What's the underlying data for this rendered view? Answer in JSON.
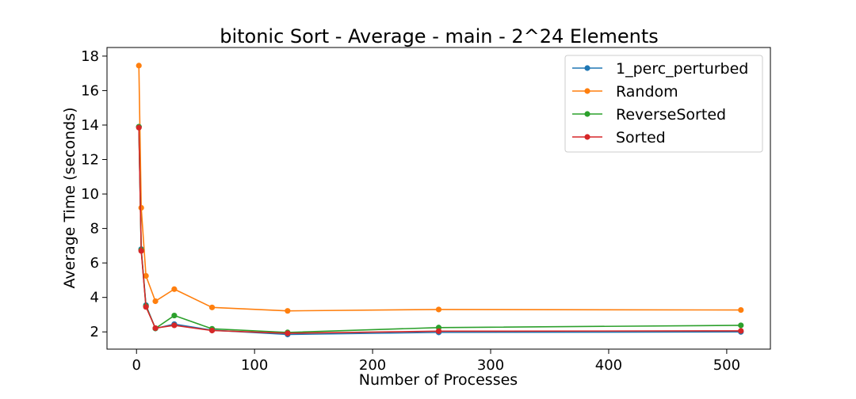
{
  "chart_data": {
    "type": "line",
    "title": "bitonic Sort - Average - main - 2^24 Elements",
    "xlabel": "Number of Processes",
    "ylabel": "Average Time (seconds)",
    "xlim": [
      -25,
      537
    ],
    "ylim": [
      1.0,
      18.5
    ],
    "xticks": [
      0,
      100,
      200,
      300,
      400,
      500
    ],
    "yticks": [
      2,
      4,
      6,
      8,
      10,
      12,
      14,
      16,
      18
    ],
    "grid": false,
    "legend_position": "top-right",
    "x": [
      2,
      4,
      8,
      16,
      32,
      64,
      128,
      256,
      512
    ],
    "series": [
      {
        "name": "1_perc_perturbed",
        "color": "#1f77b4",
        "values": [
          13.9,
          6.8,
          3.55,
          2.2,
          2.45,
          2.1,
          1.85,
          1.97,
          2.0
        ]
      },
      {
        "name": "Random",
        "color": "#ff7f0e",
        "values": [
          17.45,
          9.2,
          5.25,
          3.78,
          4.48,
          3.42,
          3.22,
          3.3,
          3.27
        ]
      },
      {
        "name": "ReverseSorted",
        "color": "#2ca02c",
        "values": [
          13.9,
          6.75,
          3.5,
          2.2,
          2.95,
          2.18,
          1.97,
          2.25,
          2.38
        ]
      },
      {
        "name": "Sorted",
        "color": "#d62728",
        "values": [
          13.85,
          6.7,
          3.45,
          2.22,
          2.38,
          2.08,
          1.92,
          2.04,
          2.06
        ]
      }
    ]
  }
}
